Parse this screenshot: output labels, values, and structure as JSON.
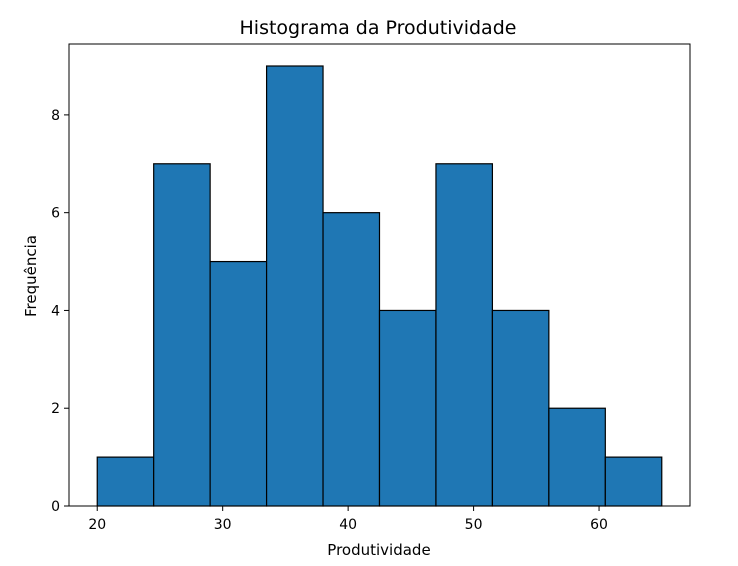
{
  "chart_data": {
    "type": "bar",
    "title": "Histograma da Produtividade",
    "xlabel": "Produtividade",
    "ylabel": "Frequência",
    "bin_edges": [
      20,
      24.5,
      29,
      33.5,
      38,
      42.5,
      47,
      51.5,
      56,
      60.5,
      65
    ],
    "values": [
      1,
      7,
      5,
      9,
      6,
      4,
      7,
      4,
      2,
      1
    ],
    "xlim": [
      17.75,
      67.25
    ],
    "ylim": [
      0,
      9.45
    ],
    "x_ticks": [
      20,
      30,
      40,
      50,
      60
    ],
    "y_ticks": [
      0,
      2,
      4,
      6,
      8
    ],
    "grid": false,
    "bar_color": "#1f77b4",
    "edge_color": "#000000"
  }
}
